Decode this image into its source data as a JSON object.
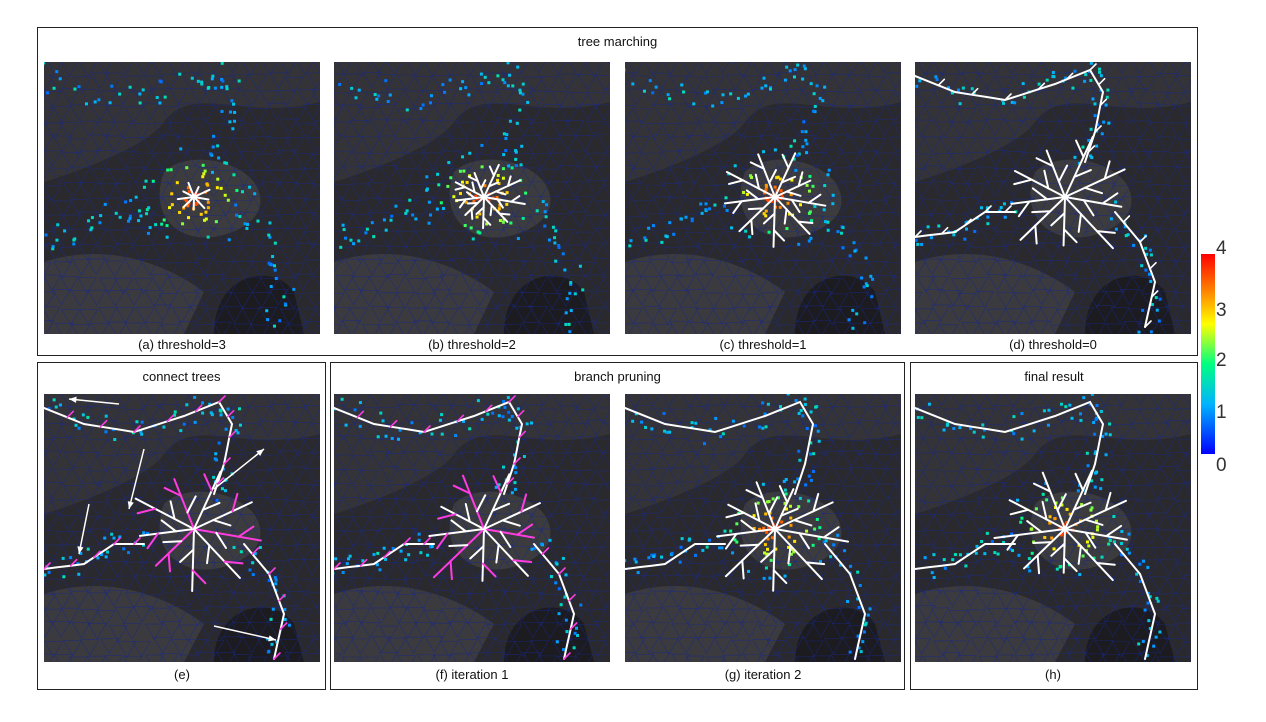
{
  "groups": {
    "tree_marching": {
      "title": "tree marching"
    },
    "connect_trees": {
      "title": "connect trees"
    },
    "branch_pruning": {
      "title": "branch pruning"
    },
    "final_result": {
      "title": "final result"
    }
  },
  "panels": [
    {
      "id": "a",
      "caption": "(a) threshold=3",
      "stage": 0
    },
    {
      "id": "b",
      "caption": "(b) threshold=2",
      "stage": 1
    },
    {
      "id": "c",
      "caption": "(c) threshold=1",
      "stage": 2
    },
    {
      "id": "d",
      "caption": "(d) threshold=0",
      "stage": 3
    },
    {
      "id": "e",
      "caption": "(e)",
      "stage": 4
    },
    {
      "id": "f",
      "caption": "(f) iteration 1",
      "stage": 5
    },
    {
      "id": "g",
      "caption": "(g) iteration 2",
      "stage": 6
    },
    {
      "id": "h",
      "caption": "(h)",
      "stage": 7
    }
  ],
  "colorbar": {
    "ticks": [
      "4",
      "3",
      "2",
      "1",
      "0"
    ],
    "min": 0,
    "max": 4
  },
  "colors": {
    "mesh_background": "#2a2a2e",
    "mesh_lines": "#1a2a8a",
    "tree_edges": "#ffffff",
    "pruned_edges": "#ff3ce0",
    "arrows": "#ffffff"
  }
}
